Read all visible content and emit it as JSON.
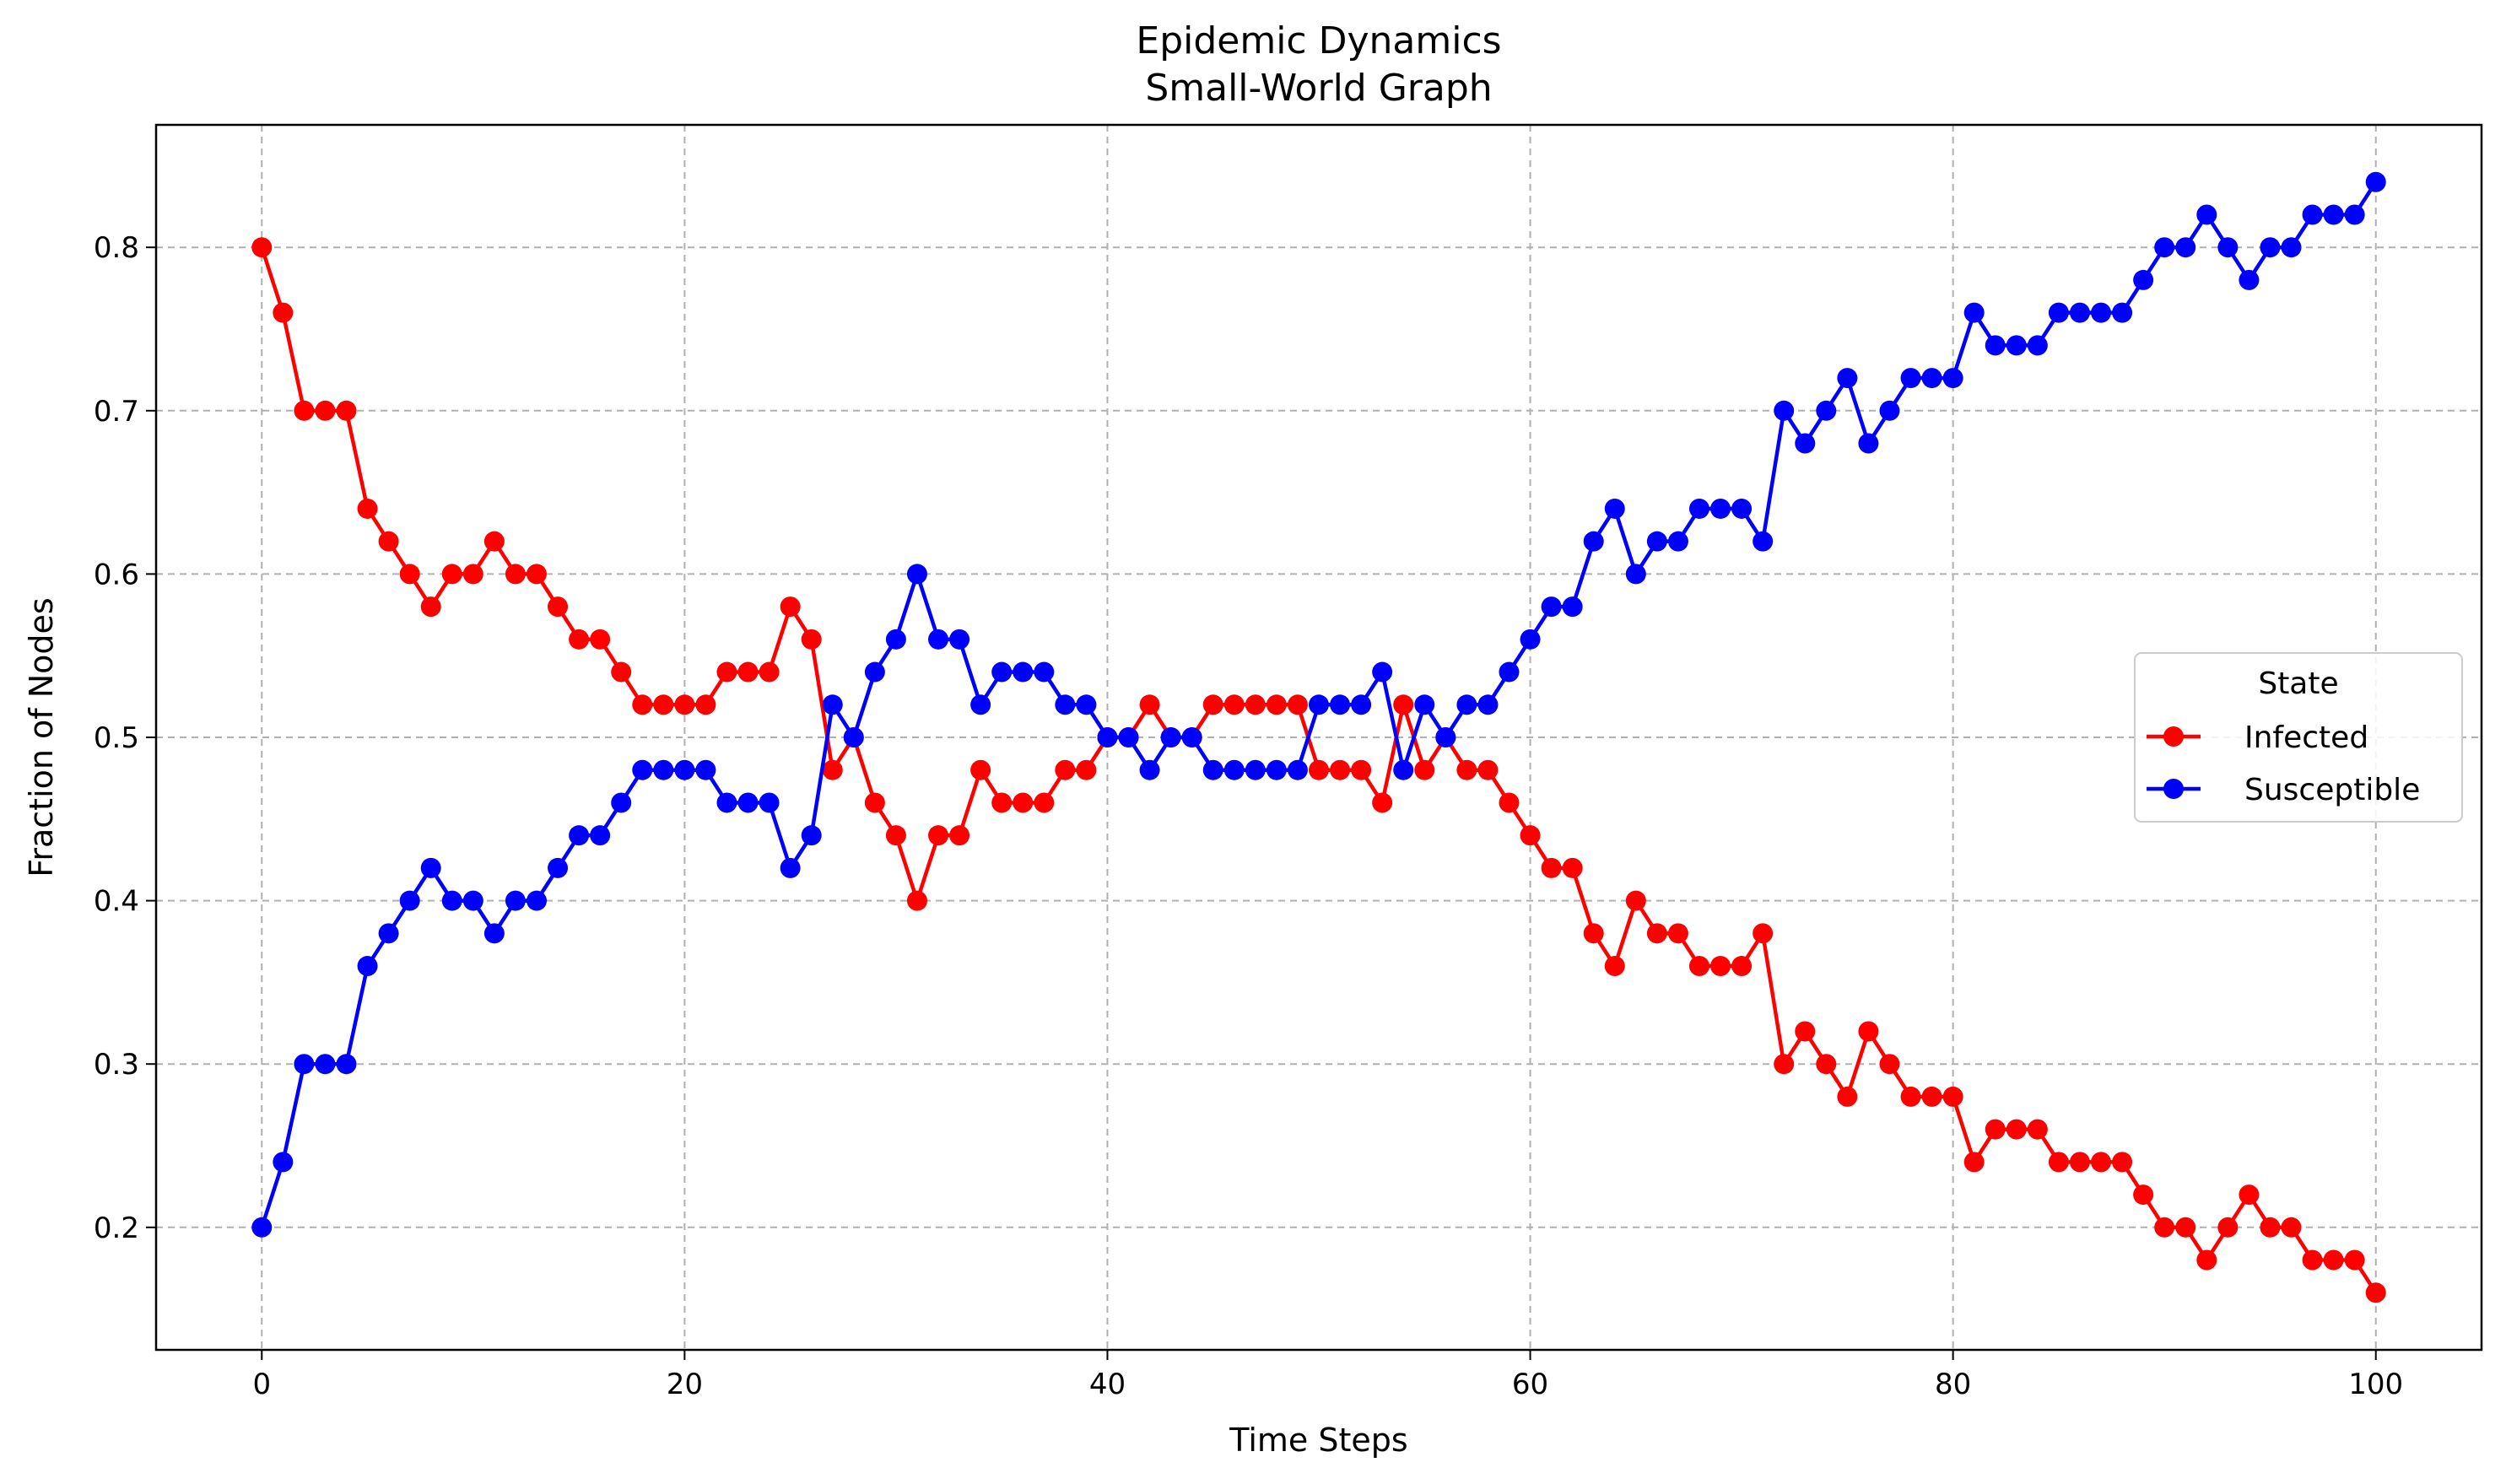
{
  "chart_data": {
    "type": "line",
    "title": "Epidemic Dynamics",
    "subtitle": "Small-World Graph",
    "xlabel": "Time Steps",
    "ylabel": "Fraction of Nodes",
    "xlim": [
      -5,
      105
    ],
    "ylim": [
      0.125,
      0.875
    ],
    "xticks": [
      0,
      20,
      40,
      60,
      80,
      100
    ],
    "yticks": [
      0.2,
      0.3,
      0.4,
      0.5,
      0.6,
      0.7,
      0.8
    ],
    "xtick_labels": [
      "0",
      "20",
      "40",
      "60",
      "80",
      "100"
    ],
    "ytick_labels": [
      "0.2",
      "0.3",
      "0.4",
      "0.5",
      "0.6",
      "0.7",
      "0.8"
    ],
    "grid": true,
    "legend": {
      "title": "State",
      "placement": "center-right"
    },
    "x": [
      0,
      1,
      2,
      3,
      4,
      5,
      6,
      7,
      8,
      9,
      10,
      11,
      12,
      13,
      14,
      15,
      16,
      17,
      18,
      19,
      20,
      21,
      22,
      23,
      24,
      25,
      26,
      27,
      28,
      29,
      30,
      31,
      32,
      33,
      34,
      35,
      36,
      37,
      38,
      39,
      40,
      41,
      42,
      43,
      44,
      45,
      46,
      47,
      48,
      49,
      50,
      51,
      52,
      53,
      54,
      55,
      56,
      57,
      58,
      59,
      60,
      61,
      62,
      63,
      64,
      65,
      66,
      67,
      68,
      69,
      70,
      71,
      72,
      73,
      74,
      75,
      76,
      77,
      78,
      79,
      80,
      81,
      82,
      83,
      84,
      85,
      86,
      87,
      88,
      89,
      90,
      91,
      92,
      93,
      94,
      95,
      96,
      97,
      98,
      99,
      100
    ],
    "series": [
      {
        "name": "Infected",
        "color": "#ff0000",
        "values": [
          0.8,
          0.76,
          0.7,
          0.7,
          0.7,
          0.64,
          0.62,
          0.6,
          0.58,
          0.6,
          0.6,
          0.62,
          0.6,
          0.6,
          0.58,
          0.56,
          0.56,
          0.54,
          0.52,
          0.52,
          0.52,
          0.52,
          0.54,
          0.54,
          0.54,
          0.58,
          0.56,
          0.48,
          0.5,
          0.46,
          0.44,
          0.4,
          0.44,
          0.44,
          0.48,
          0.46,
          0.46,
          0.46,
          0.48,
          0.48,
          0.5,
          0.5,
          0.52,
          0.5,
          0.5,
          0.52,
          0.52,
          0.52,
          0.52,
          0.52,
          0.48,
          0.48,
          0.48,
          0.46,
          0.52,
          0.48,
          0.5,
          0.48,
          0.48,
          0.46,
          0.44,
          0.42,
          0.42,
          0.38,
          0.36,
          0.4,
          0.38,
          0.38,
          0.36,
          0.36,
          0.36,
          0.38,
          0.3,
          0.32,
          0.3,
          0.28,
          0.32,
          0.3,
          0.28,
          0.28,
          0.28,
          0.24,
          0.26,
          0.26,
          0.26,
          0.24,
          0.24,
          0.24,
          0.24,
          0.22,
          0.2,
          0.2,
          0.18,
          0.2,
          0.22,
          0.2,
          0.2,
          0.18,
          0.18,
          0.18,
          0.16
        ]
      },
      {
        "name": "Susceptible",
        "color": "#0000ff",
        "values": [
          0.2,
          0.24,
          0.3,
          0.3,
          0.3,
          0.36,
          0.38,
          0.4,
          0.42,
          0.4,
          0.4,
          0.38,
          0.4,
          0.4,
          0.42,
          0.44,
          0.44,
          0.46,
          0.48,
          0.48,
          0.48,
          0.48,
          0.46,
          0.46,
          0.46,
          0.42,
          0.44,
          0.52,
          0.5,
          0.54,
          0.56,
          0.6,
          0.56,
          0.56,
          0.52,
          0.54,
          0.54,
          0.54,
          0.52,
          0.52,
          0.5,
          0.5,
          0.48,
          0.5,
          0.5,
          0.48,
          0.48,
          0.48,
          0.48,
          0.48,
          0.52,
          0.52,
          0.52,
          0.54,
          0.48,
          0.52,
          0.5,
          0.52,
          0.52,
          0.54,
          0.56,
          0.58,
          0.58,
          0.62,
          0.64,
          0.6,
          0.62,
          0.62,
          0.64,
          0.64,
          0.64,
          0.62,
          0.7,
          0.68,
          0.7,
          0.72,
          0.68,
          0.7,
          0.72,
          0.72,
          0.72,
          0.76,
          0.74,
          0.74,
          0.74,
          0.76,
          0.76,
          0.76,
          0.76,
          0.78,
          0.8,
          0.8,
          0.82,
          0.8,
          0.78,
          0.8,
          0.8,
          0.82,
          0.82,
          0.82,
          0.84
        ]
      }
    ]
  }
}
